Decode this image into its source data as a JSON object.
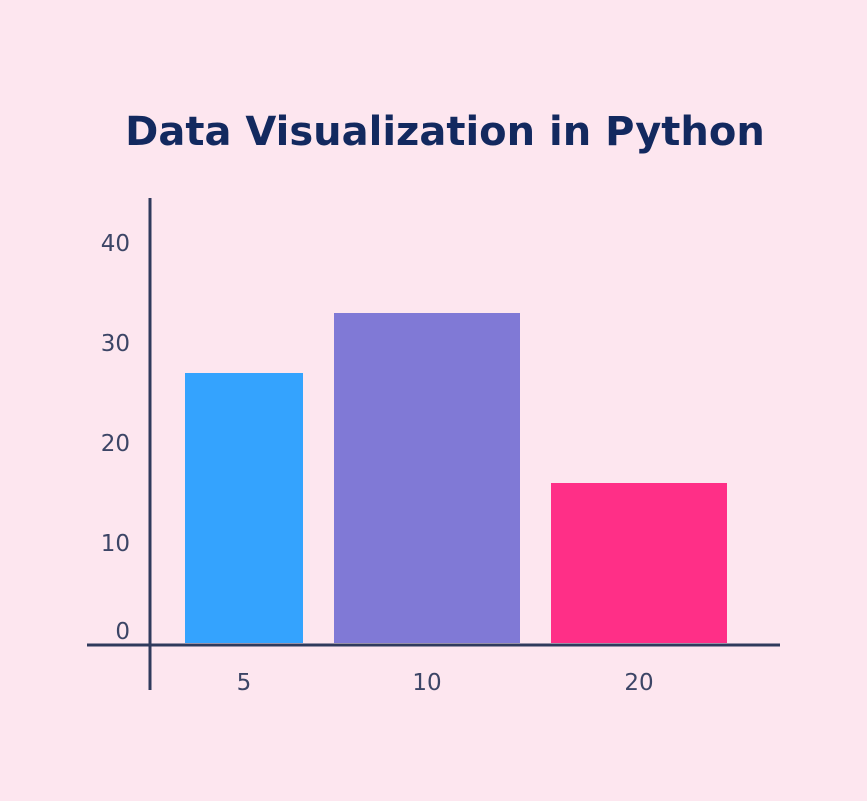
{
  "colors": {
    "background": "#fde6ef",
    "title": "#13295f",
    "axis": "#2f3a5c",
    "tick_text": "#3c4566"
  },
  "chart_data": {
    "type": "bar",
    "title": "Data Visualization in Python",
    "xlabel": "",
    "ylabel": "",
    "categories": [
      "5",
      "10",
      "20"
    ],
    "values": [
      27,
      33,
      16
    ],
    "bar_colors": [
      "#34a3fe",
      "#8079d6",
      "#ff2f87"
    ],
    "ylim": [
      0,
      44
    ],
    "yticks": [
      0,
      10,
      20,
      30,
      40
    ],
    "ytick_labels": [
      "0",
      "10",
      "20",
      "30",
      "40"
    ],
    "grid": false,
    "legend": "none"
  }
}
